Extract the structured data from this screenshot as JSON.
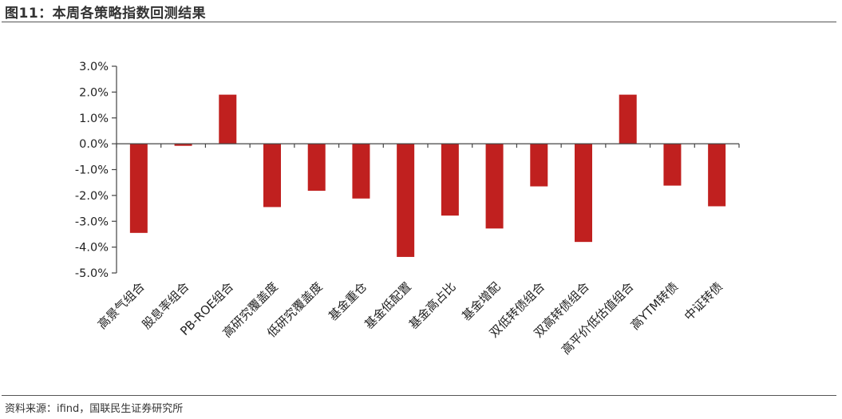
{
  "header": {
    "title": "图11：本周各策略指数回测结果"
  },
  "footer": {
    "source": "资料来源：ifind，国联民生证券研究所"
  },
  "colors": {
    "bar": "#c0201f",
    "axis": "#444444"
  },
  "chart_data": {
    "type": "bar",
    "title": "",
    "xlabel": "",
    "ylabel": "",
    "ylim": [
      -5.0,
      3.0
    ],
    "y_ticks": [
      3.0,
      2.0,
      1.0,
      0.0,
      -1.0,
      -2.0,
      -3.0,
      -4.0,
      -5.0
    ],
    "y_tick_labels": [
      "3.0%",
      "2.0%",
      "1.0%",
      "0.0%",
      "-1.0%",
      "-2.0%",
      "-3.0%",
      "-4.0%",
      "-5.0%"
    ],
    "categories": [
      "高景气组合",
      "股息率组合",
      "PB-ROE组合",
      "高研究覆盖度",
      "低研究覆盖度",
      "基金重仓",
      "基金低配置",
      "基金高占比",
      "基金增配",
      "双低转债组合",
      "双高转债组合",
      "高平价低估值组合",
      "高YTM转债",
      "中证转债"
    ],
    "values": [
      -3.45,
      -0.08,
      1.9,
      -2.45,
      -1.82,
      -2.12,
      -4.38,
      -2.78,
      -3.28,
      -1.65,
      -3.8,
      1.9,
      -1.62,
      -2.42
    ],
    "unit": "%",
    "grid": false,
    "legend": "none"
  }
}
